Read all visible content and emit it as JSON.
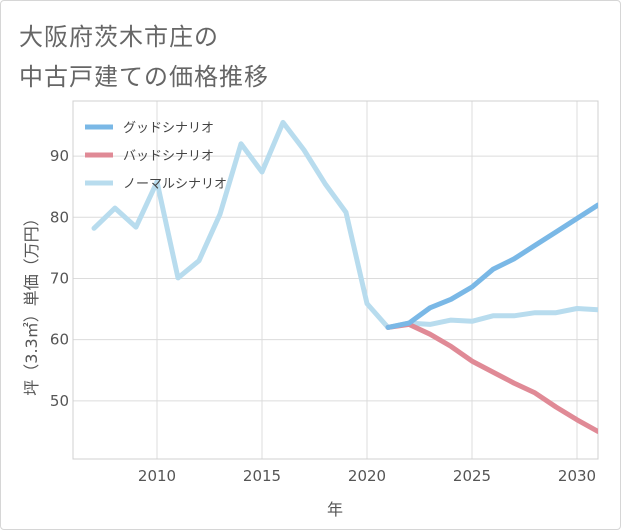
{
  "title_line1": "大阪府茨木市庄の",
  "title_line2": "中古戸建ての価格推移",
  "chart_data": {
    "type": "line",
    "title": "大阪府茨木市庄の中古戸建ての価格推移",
    "xlabel": "年",
    "ylabel": "坪（3.3㎡）単価（万円）",
    "xlim": [
      2006,
      2031
    ],
    "ylim": [
      40.5,
      99
    ],
    "x_ticks": [
      2010,
      2015,
      2020,
      2025,
      2030
    ],
    "y_ticks": [
      50,
      60,
      70,
      80,
      90
    ],
    "grid": true,
    "legend_position": "top-left",
    "series": [
      {
        "name": "グッドシナリオ",
        "color": "#7ab8e6",
        "x": [
          2021,
          2022,
          2023,
          2024,
          2025,
          2026,
          2027,
          2028,
          2029,
          2030,
          2031
        ],
        "values": [
          62.0,
          62.7,
          65.2,
          66.6,
          68.6,
          71.5,
          73.2,
          75.4,
          77.6,
          79.8,
          82.0
        ]
      },
      {
        "name": "バッドシナリオ",
        "color": "#e08a96",
        "x": [
          2021,
          2022,
          2023,
          2024,
          2025,
          2026,
          2027,
          2028,
          2029,
          2030,
          2031
        ],
        "values": [
          62.0,
          62.5,
          60.9,
          58.9,
          56.5,
          54.7,
          52.9,
          51.3,
          49.0,
          46.9,
          45.0
        ]
      },
      {
        "name": "ノーマルシナリオ",
        "color": "#b8dcee",
        "x": [
          2007,
          2008,
          2009,
          2010,
          2011,
          2012,
          2013,
          2014,
          2015,
          2016,
          2017,
          2018,
          2019,
          2020,
          2021,
          2022,
          2023,
          2024,
          2025,
          2026,
          2027,
          2028,
          2029,
          2030,
          2031
        ],
        "values": [
          78.2,
          81.5,
          78.4,
          85.8,
          70.1,
          72.9,
          80.5,
          92.0,
          87.4,
          95.5,
          91.0,
          85.5,
          80.8,
          65.9,
          62.0,
          62.7,
          62.5,
          63.2,
          63.0,
          63.9,
          63.9,
          64.4,
          64.4,
          65.1,
          64.9
        ]
      }
    ]
  }
}
